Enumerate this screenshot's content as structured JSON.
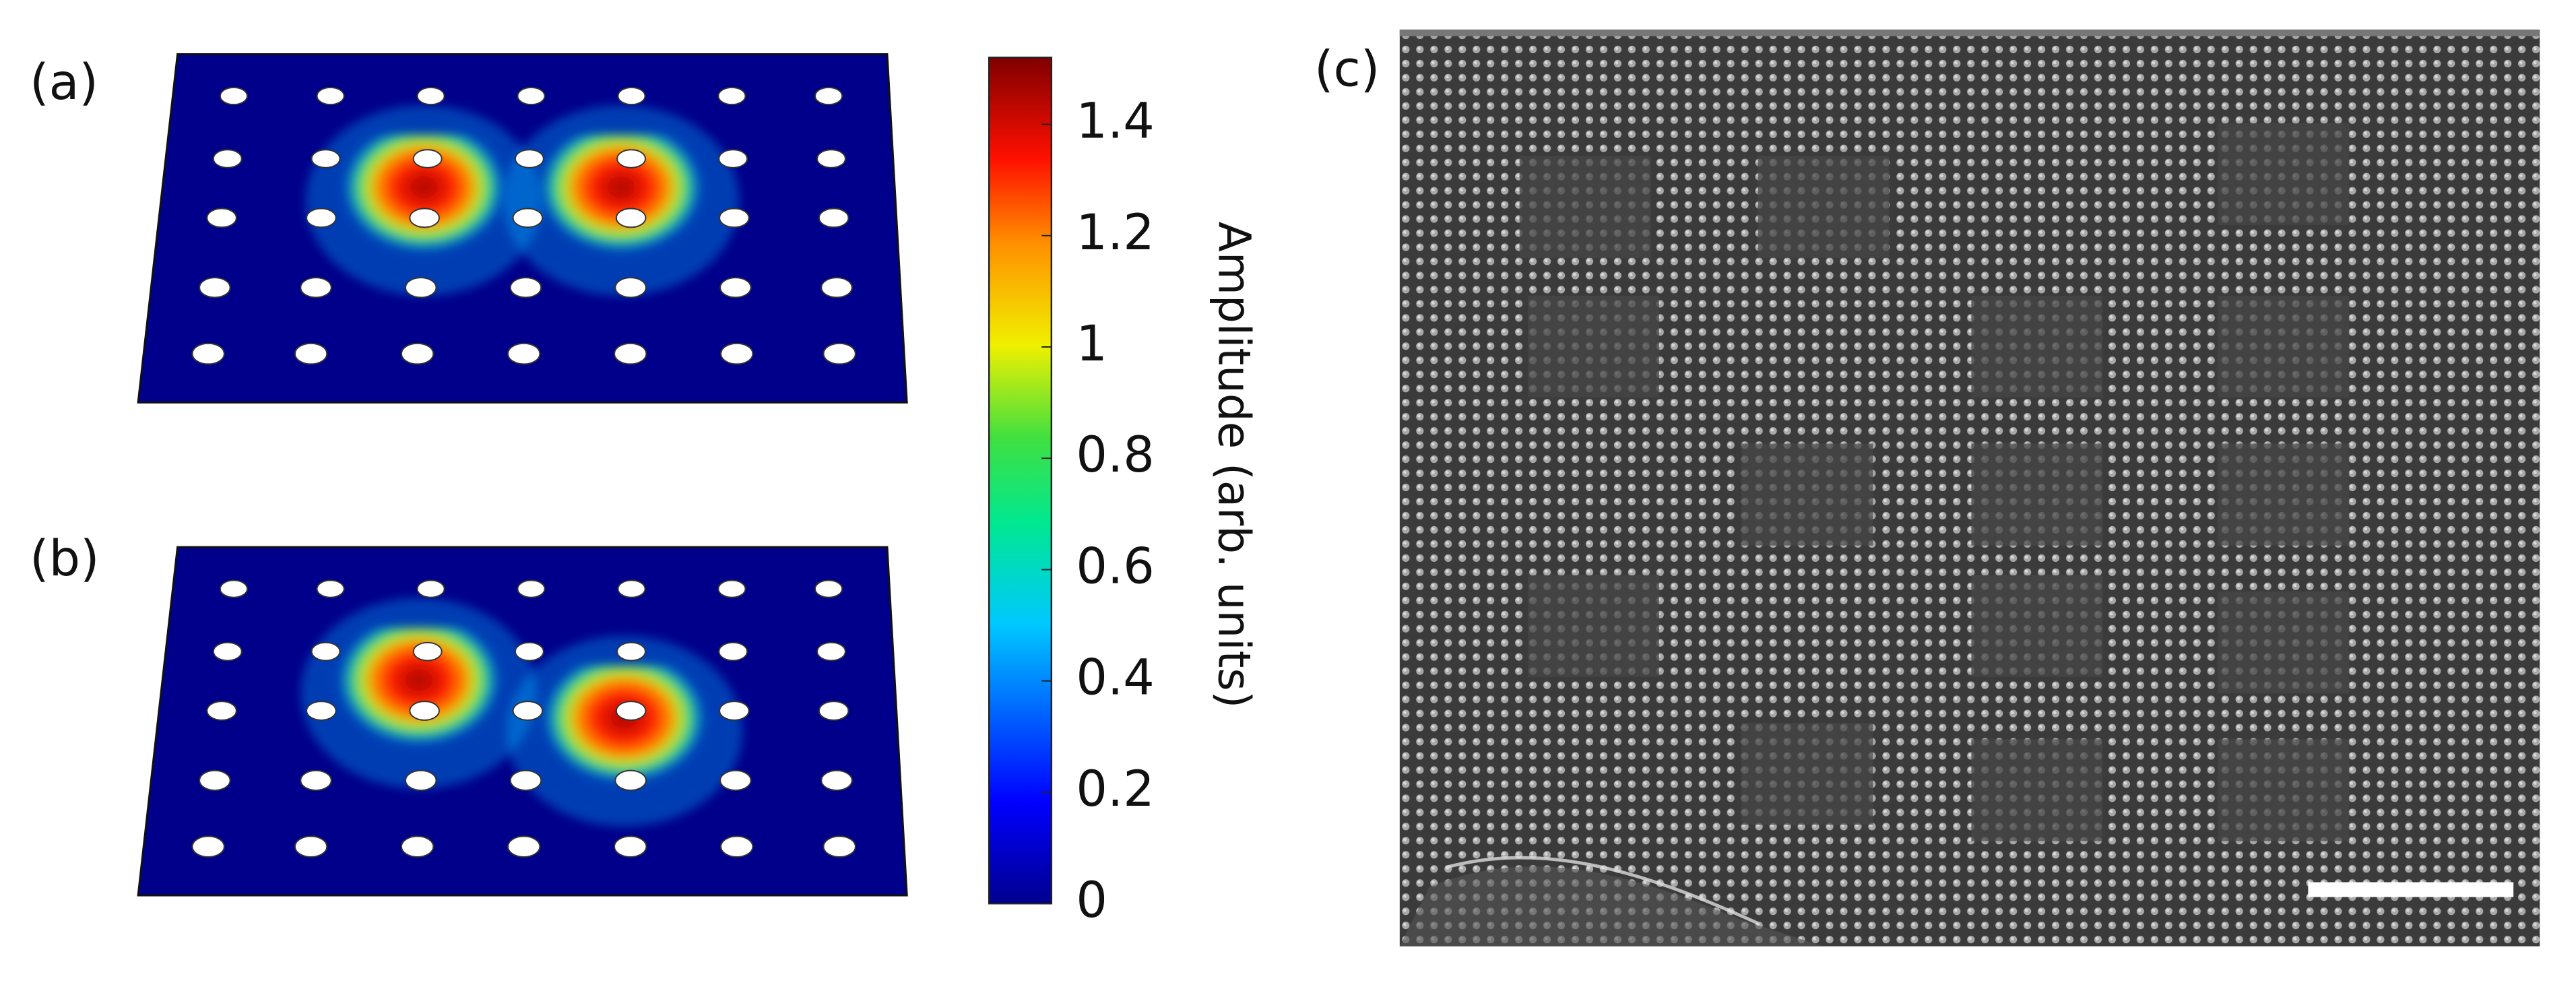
{
  "panels": {
    "a": {
      "label": "(a)"
    },
    "b": {
      "label": "(b)"
    },
    "c": {
      "label": "(c)"
    }
  },
  "colorbar": {
    "label": "Amplitude (arb. units)",
    "lim": [
      0,
      1.52
    ],
    "ticks": [
      0,
      0.2,
      0.4,
      0.6,
      0.8,
      1,
      1.2,
      1.4
    ]
  }
}
